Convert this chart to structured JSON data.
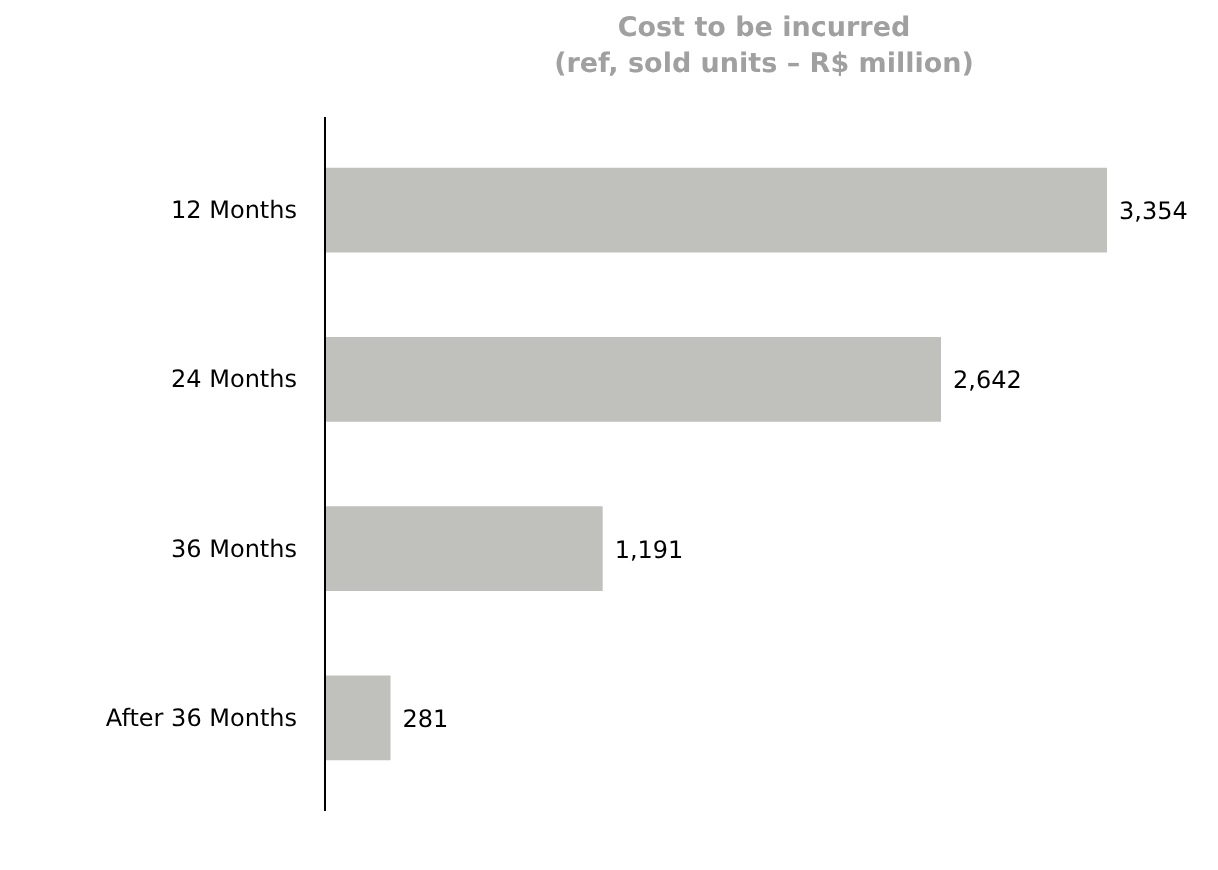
{
  "chart_data": {
    "type": "bar",
    "orientation": "horizontal",
    "title": "Cost to be incurred\n(ref,  sold units – R$ million)",
    "categories": [
      "12 Months",
      "24 Months",
      "36 Months",
      "After 36 Months"
    ],
    "values": [
      3354,
      2642,
      1191,
      281
    ],
    "value_labels": [
      "3,354",
      "2,642",
      "1,191",
      "281"
    ],
    "color": "#c0c0bc",
    "grid": false,
    "tick_labels": "y"
  }
}
